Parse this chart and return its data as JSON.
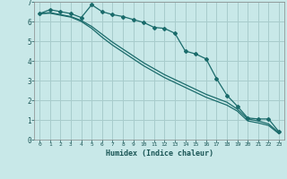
{
  "background_color": "#c8e8e8",
  "grid_color": "#a8cccc",
  "line_color": "#1a6b6b",
  "x_values": [
    0,
    1,
    2,
    3,
    4,
    5,
    6,
    7,
    8,
    9,
    10,
    11,
    12,
    13,
    14,
    15,
    16,
    17,
    18,
    19,
    20,
    21,
    22,
    23
  ],
  "series1": [
    6.4,
    6.6,
    6.5,
    6.4,
    6.2,
    6.85,
    6.5,
    6.35,
    6.25,
    6.1,
    5.95,
    5.7,
    5.65,
    5.4,
    4.5,
    4.35,
    4.1,
    3.1,
    2.25,
    1.7,
    1.1,
    1.05,
    1.05,
    0.4
  ],
  "series2": [
    6.4,
    6.45,
    6.35,
    6.25,
    6.05,
    5.75,
    5.35,
    4.95,
    4.6,
    4.25,
    3.9,
    3.6,
    3.3,
    3.05,
    2.8,
    2.55,
    2.3,
    2.1,
    1.9,
    1.55,
    1.05,
    0.95,
    0.8,
    0.35
  ],
  "series3": [
    6.4,
    6.42,
    6.32,
    6.22,
    6.0,
    5.65,
    5.2,
    4.8,
    4.45,
    4.1,
    3.75,
    3.45,
    3.15,
    2.9,
    2.65,
    2.4,
    2.15,
    1.95,
    1.75,
    1.45,
    0.95,
    0.85,
    0.72,
    0.3
  ],
  "ylim": [
    0,
    7
  ],
  "yticks": [
    0,
    1,
    2,
    3,
    4,
    5,
    6,
    7
  ],
  "xlabel": "Humidex (Indice chaleur)"
}
